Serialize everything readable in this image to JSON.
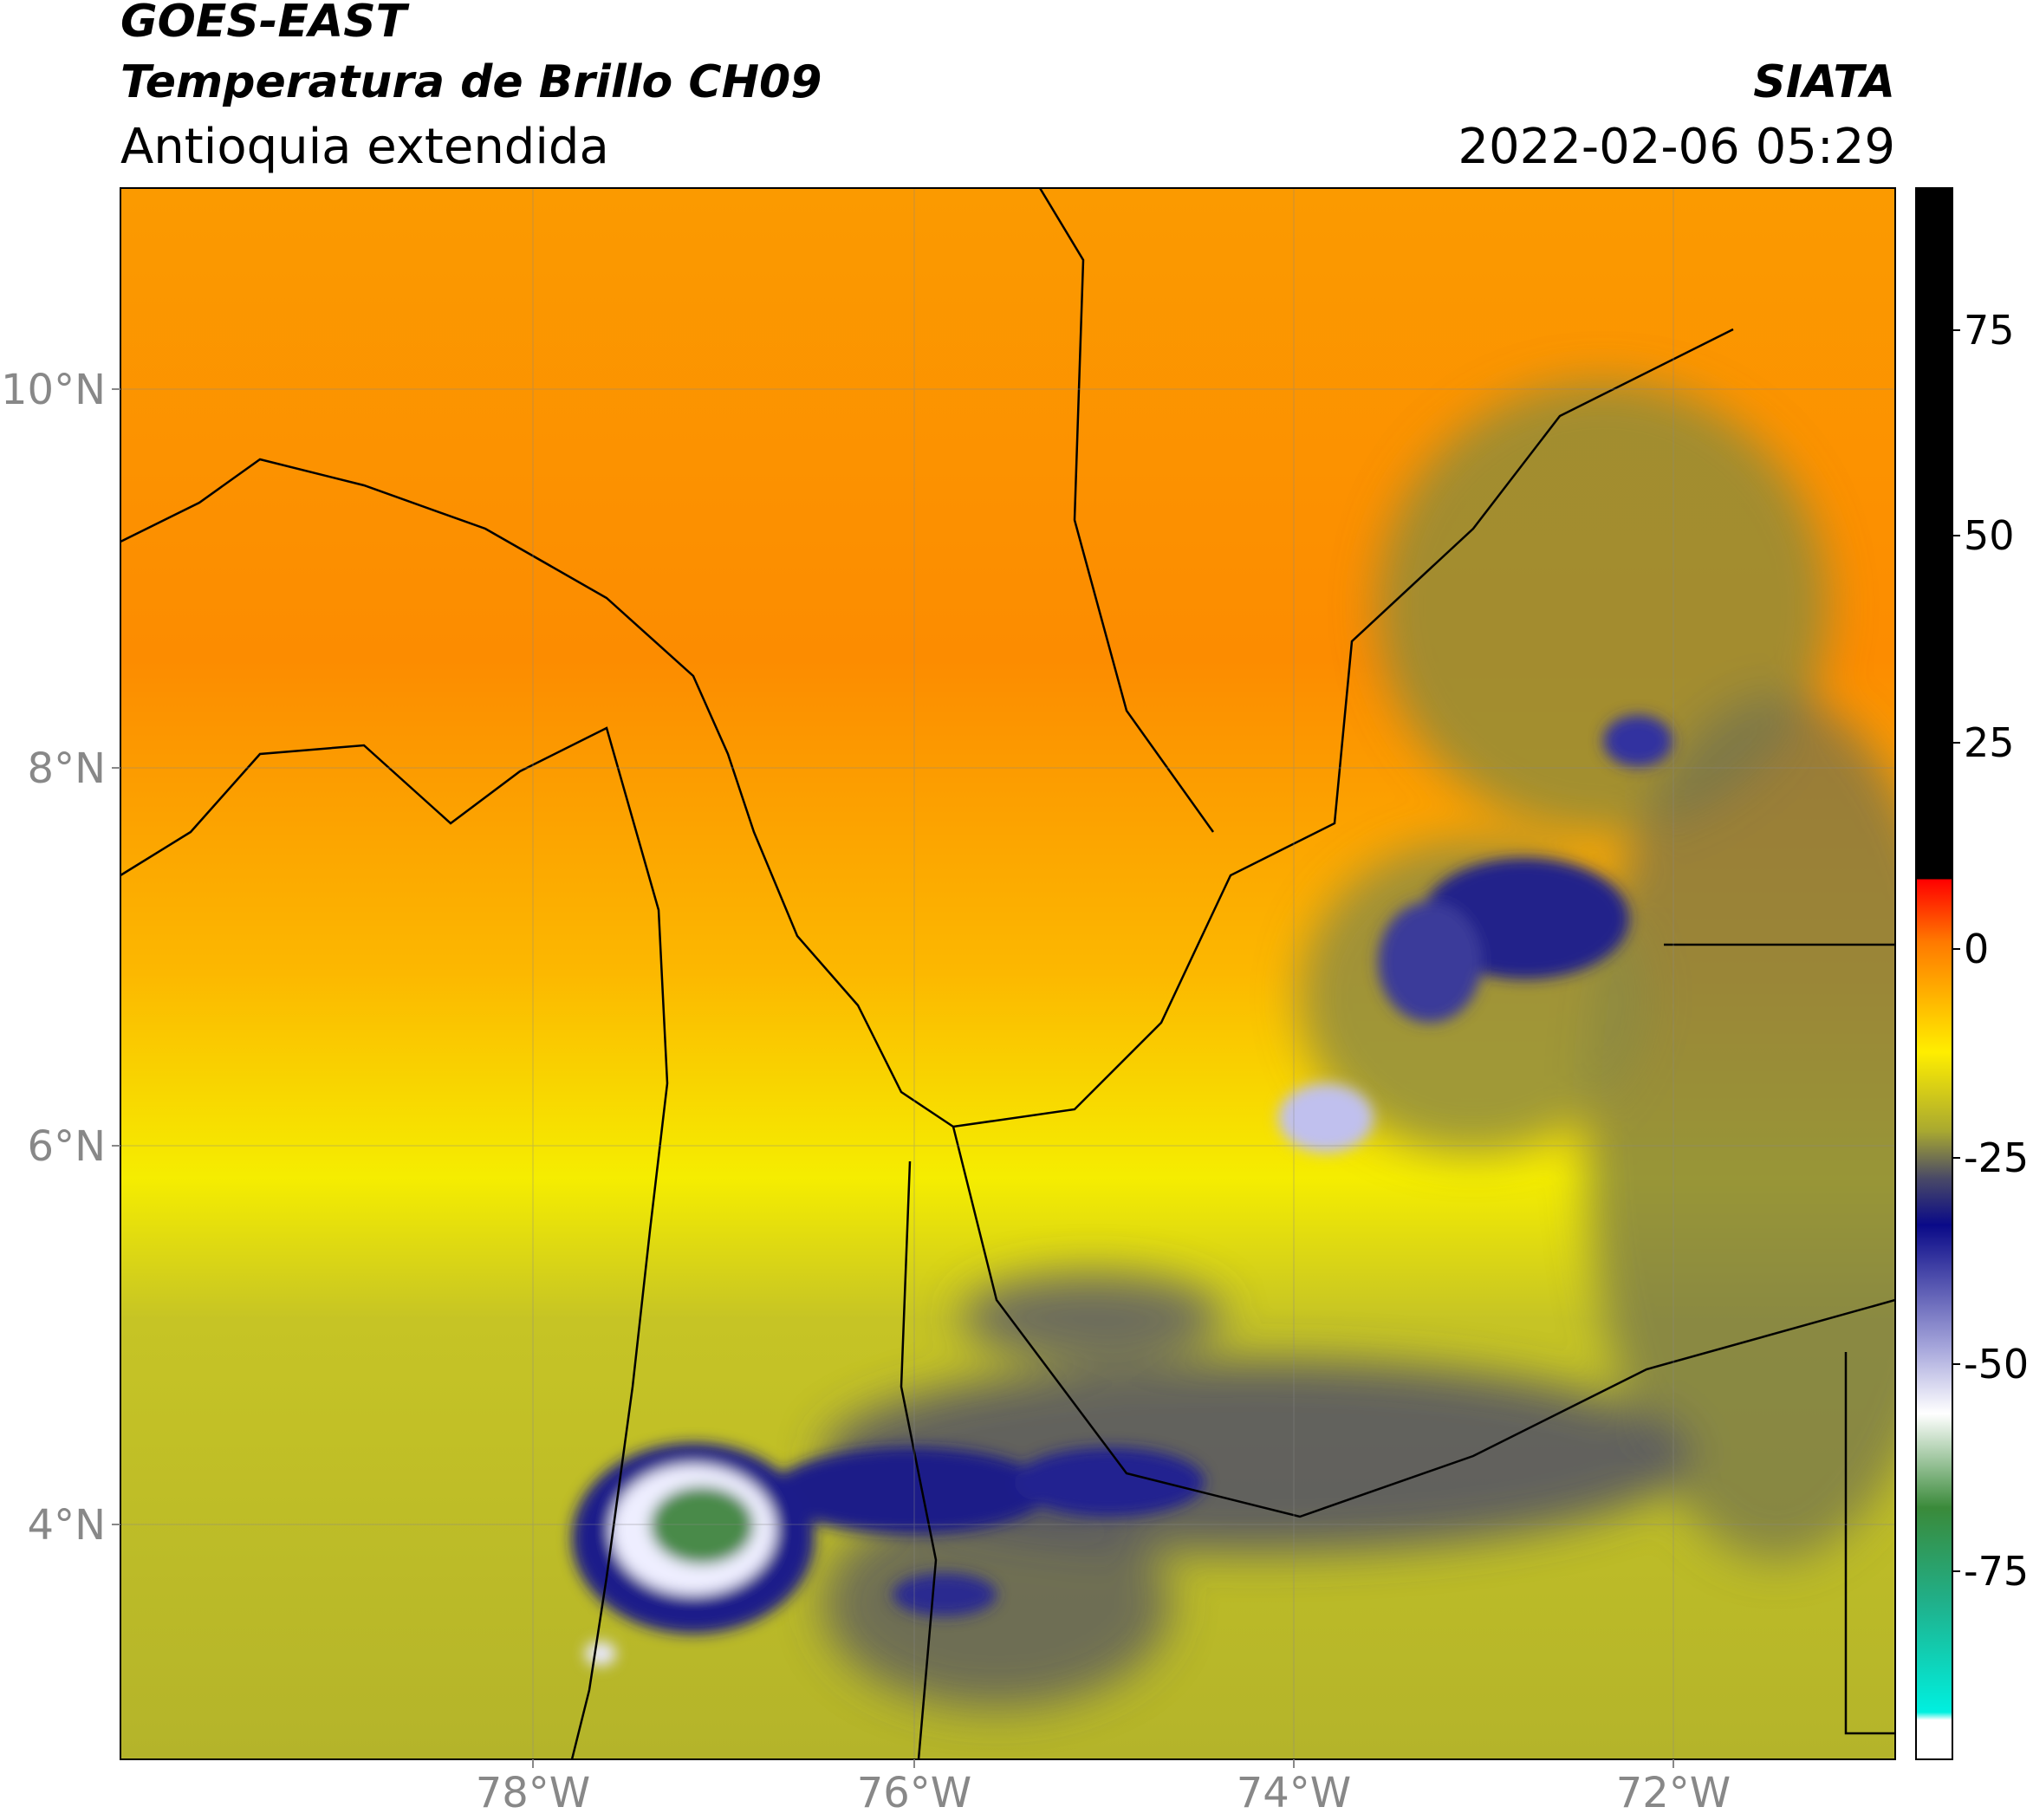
{
  "header": {
    "title": "GOES-EAST",
    "subtitle": "Temperatura de Brillo CH09",
    "region": "Antioquia extendida",
    "source": "SIATA",
    "datetime": "2022-02-06 05:29"
  },
  "map": {
    "lat_labels": [
      "10°N",
      "8°N",
      "6°N",
      "4°N"
    ],
    "lon_labels": [
      "78°W",
      "76°W",
      "74°W",
      "72°W"
    ]
  },
  "colorbar": {
    "ticks": [
      75,
      50,
      25,
      0,
      -25,
      -50,
      -75
    ]
  }
}
